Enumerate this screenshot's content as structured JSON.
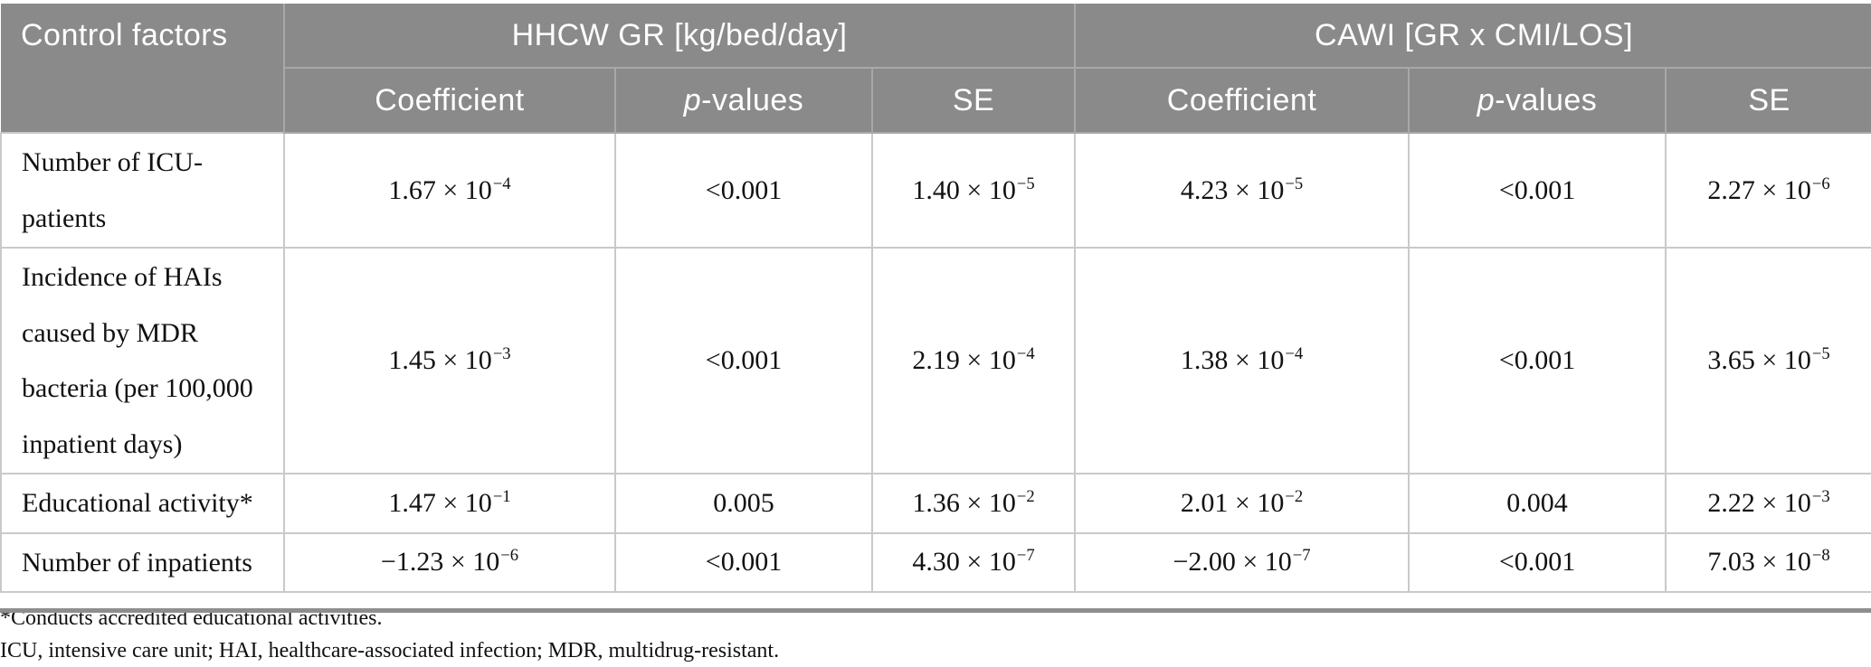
{
  "colors": {
    "header_bg": "#8a8a8a",
    "header_text": "#ffffff",
    "header_divider": "#a8a8a8",
    "body_border": "#c9c9c9",
    "body_text": "#111111"
  },
  "table": {
    "control_factors_header": "Control factors",
    "group_headers": [
      "HHCW GR [kg/bed/day]",
      "CAWI [GR x CMI/LOS]"
    ],
    "subheader_cells": [
      {
        "italic": "",
        "text": "Coefficient"
      },
      {
        "italic": "p",
        "text": "-values"
      },
      {
        "italic": "",
        "text": "SE"
      },
      {
        "italic": "",
        "text": "Coefficient"
      },
      {
        "italic": "p",
        "text": "-values"
      },
      {
        "italic": "",
        "text": "SE"
      }
    ],
    "rows": [
      {
        "factor": "Number of ICU-\npatients",
        "cells": [
          {
            "text": "1.67 × 10",
            "sup": "−4"
          },
          {
            "text": "<0.001",
            "sup": ""
          },
          {
            "text": "1.40 × 10",
            "sup": "−5"
          },
          {
            "text": "4.23 × 10",
            "sup": "−5"
          },
          {
            "text": "<0.001",
            "sup": ""
          },
          {
            "text": "2.27 × 10",
            "sup": "−6"
          }
        ]
      },
      {
        "factor": "Incidence of HAIs\ncaused by MDR\nbacteria (per 100,000\ninpatient days)",
        "cells": [
          {
            "text": "1.45 × 10",
            "sup": "−3"
          },
          {
            "text": "<0.001",
            "sup": ""
          },
          {
            "text": "2.19 × 10",
            "sup": "−4"
          },
          {
            "text": "1.38 × 10",
            "sup": "−4"
          },
          {
            "text": "<0.001",
            "sup": ""
          },
          {
            "text": "3.65 × 10",
            "sup": "−5"
          }
        ]
      },
      {
        "factor": "Educational activity*",
        "cells": [
          {
            "text": "1.47 × 10",
            "sup": "−1"
          },
          {
            "text": "0.005",
            "sup": ""
          },
          {
            "text": "1.36 × 10",
            "sup": "−2"
          },
          {
            "text": "2.01 × 10",
            "sup": "−2"
          },
          {
            "text": "0.004",
            "sup": ""
          },
          {
            "text": "2.22 × 10",
            "sup": "−3"
          }
        ]
      },
      {
        "factor": "Number of inpatients",
        "cells": [
          {
            "text": "−1.23 × 10",
            "sup": "−6"
          },
          {
            "text": "<0.001",
            "sup": ""
          },
          {
            "text": "4.30 × 10",
            "sup": "−7"
          },
          {
            "text": "−2.00 × 10",
            "sup": "−7"
          },
          {
            "text": "<0.001",
            "sup": ""
          },
          {
            "text": "7.03 × 10",
            "sup": "−8"
          }
        ]
      }
    ]
  },
  "footnotes": [
    "*Conducts accredited educational activities.",
    "ICU, intensive care unit; HAI, healthcare-associated infection; MDR, multidrug-resistant."
  ]
}
